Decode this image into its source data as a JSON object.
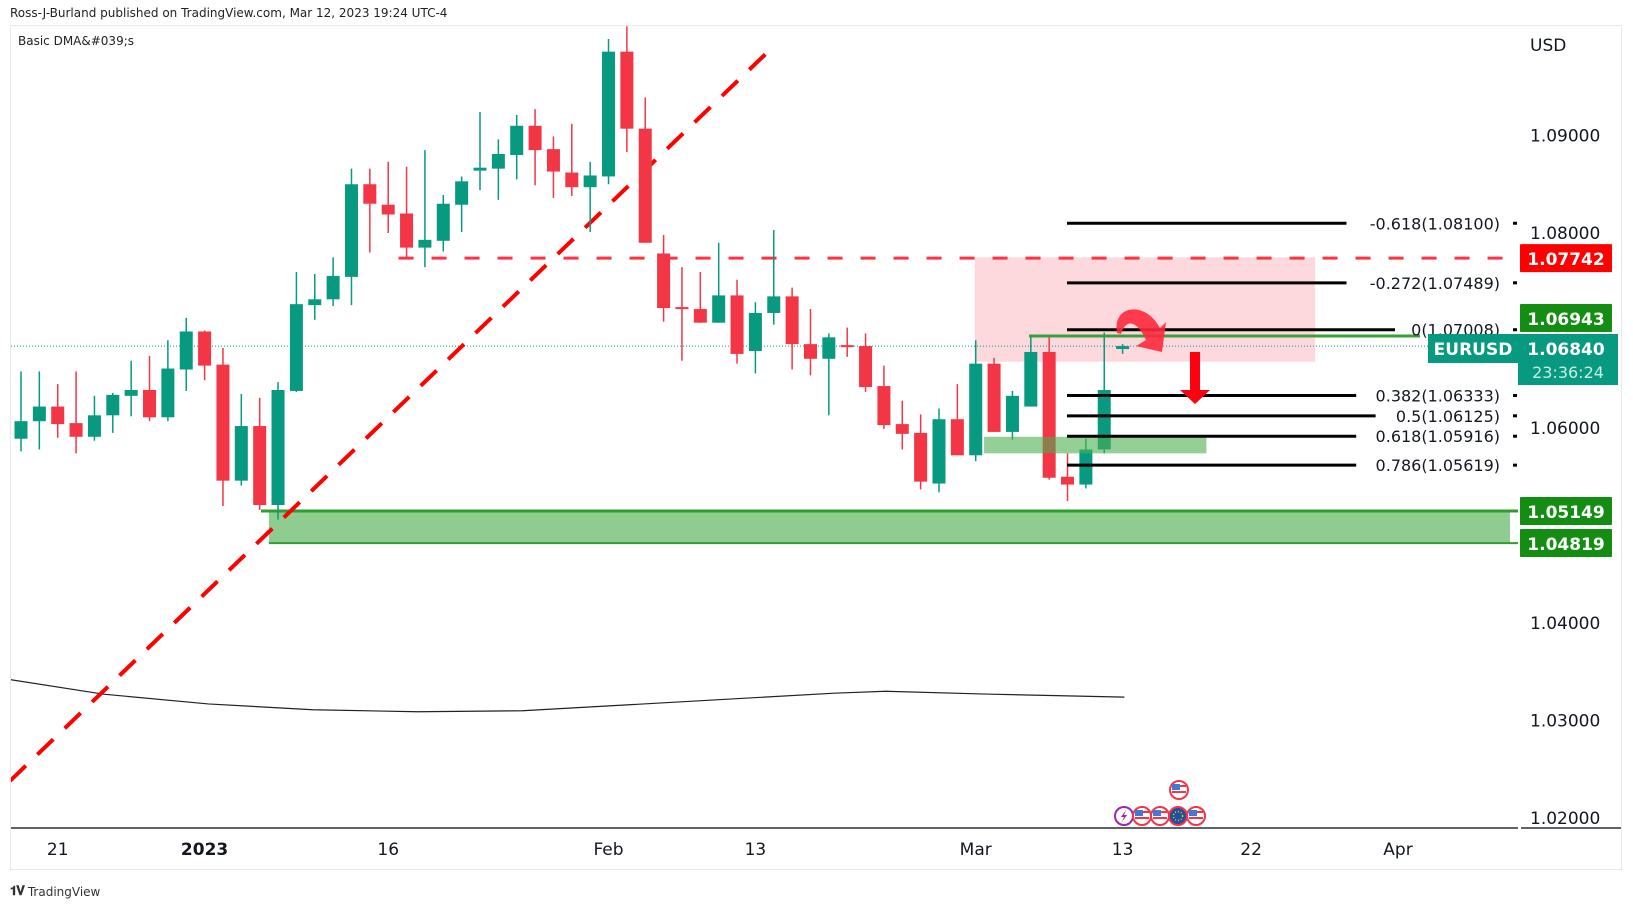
{
  "header": {
    "published": "Ross-J-Burland published on TradingView.com, Mar 12, 2023 19:24 UTC-4",
    "indicator": "Basic DMA&#039;s",
    "currency": "USD",
    "brand": "TradingView",
    "brand_logo": "TV"
  },
  "colors": {
    "up": "#089981",
    "down": "#f23645",
    "fib": "#000000",
    "red_level": "#ff0000",
    "green_level": "#138d12",
    "zone_green": "#8fcc8f",
    "zone_pink": "#fdd9dd",
    "ma": "#222222"
  },
  "chart_data": {
    "type": "candlestick",
    "symbol": "EURUSD",
    "current_price": "1.06840",
    "countdown": "23:36:24",
    "ylim": [
      1.0165,
      1.1015
    ],
    "y_ticks": [
      "1.09000",
      "1.08000",
      "1.06000",
      "1.04000",
      "1.03000",
      "1.02000"
    ],
    "y_tick_values": [
      1.09,
      1.08,
      1.06,
      1.04,
      1.03,
      1.02
    ],
    "x_ticks": [
      {
        "label": "21",
        "bar": 2
      },
      {
        "label": "2023",
        "bar": 10,
        "bold": true
      },
      {
        "label": "16",
        "bar": 20
      },
      {
        "label": "Feb",
        "bar": 32
      },
      {
        "label": "13",
        "bar": 40
      },
      {
        "label": "Mar",
        "bar": 52
      },
      {
        "label": "13",
        "bar": 60
      },
      {
        "label": "22",
        "bar": 67
      },
      {
        "label": "Apr",
        "bar": 75
      }
    ],
    "candles_ohlc": [
      [
        1.0589,
        1.0658,
        1.0576,
        1.0607
      ],
      [
        1.0607,
        1.0658,
        1.0578,
        1.0622
      ],
      [
        1.0622,
        1.0645,
        1.059,
        1.0604
      ],
      [
        1.0605,
        1.0658,
        1.0574,
        1.0591
      ],
      [
        1.0591,
        1.0633,
        1.0587,
        1.0613
      ],
      [
        1.0613,
        1.0636,
        1.0595,
        1.0634
      ],
      [
        1.0633,
        1.0669,
        1.0612,
        1.0639
      ],
      [
        1.0639,
        1.0674,
        1.0607,
        1.0611
      ],
      [
        1.0611,
        1.069,
        1.0607,
        1.0661
      ],
      [
        1.066,
        1.0713,
        1.0638,
        1.0699
      ],
      [
        1.0699,
        1.07,
        1.0649,
        1.0664
      ],
      [
        1.0665,
        1.0682,
        1.052,
        1.0546
      ],
      [
        1.0546,
        1.0635,
        1.0541,
        1.0602
      ],
      [
        1.0602,
        1.0631,
        1.0516,
        1.0521
      ],
      [
        1.0521,
        1.0647,
        1.0506,
        1.0639
      ],
      [
        1.0638,
        1.076,
        1.0637,
        1.0727
      ],
      [
        1.0726,
        1.0758,
        1.0711,
        1.0732
      ],
      [
        1.0732,
        1.0775,
        1.0725,
        1.0756
      ],
      [
        1.0755,
        1.0866,
        1.0726,
        1.085
      ],
      [
        1.085,
        1.0866,
        1.078,
        1.083
      ],
      [
        1.0829,
        1.0873,
        1.08,
        1.0819
      ],
      [
        1.082,
        1.0868,
        1.0773,
        1.0785
      ],
      [
        1.0785,
        1.0885,
        1.0765,
        1.0793
      ],
      [
        1.0792,
        1.0839,
        1.0781,
        1.083
      ],
      [
        1.0829,
        1.0858,
        1.0801,
        1.0853
      ],
      [
        1.0864,
        1.0924,
        1.0844,
        1.0867
      ],
      [
        1.0866,
        1.0896,
        1.0834,
        1.0881
      ],
      [
        1.088,
        1.0921,
        1.0855,
        1.091
      ],
      [
        1.091,
        1.0927,
        1.0849,
        1.0885
      ],
      [
        1.0886,
        1.0899,
        1.0836,
        1.0863
      ],
      [
        1.0862,
        1.0912,
        1.0838,
        1.0847
      ],
      [
        1.0847,
        1.0873,
        1.0801,
        1.0859
      ],
      [
        1.0858,
        1.0999,
        1.085,
        1.0986
      ],
      [
        1.0986,
        1.1012,
        1.0883,
        1.0907
      ],
      [
        1.0907,
        1.0939,
        1.079,
        1.079
      ],
      [
        1.0779,
        1.0798,
        1.0709,
        1.0723
      ],
      [
        1.0724,
        1.0765,
        1.0669,
        1.0722
      ],
      [
        1.0722,
        1.076,
        1.0708,
        1.0708
      ],
      [
        1.0708,
        1.079,
        1.0708,
        1.0736
      ],
      [
        1.0736,
        1.0752,
        1.0666,
        1.0676
      ],
      [
        1.0679,
        1.0729,
        1.0656,
        1.0718
      ],
      [
        1.0718,
        1.0803,
        1.0706,
        1.0735
      ],
      [
        1.0735,
        1.0744,
        1.066,
        1.0686
      ],
      [
        1.0686,
        1.0722,
        1.0654,
        1.0671
      ],
      [
        1.0671,
        1.0697,
        1.0613,
        1.0693
      ],
      [
        1.0685,
        1.0703,
        1.0673,
        1.0683
      ],
      [
        1.0684,
        1.0697,
        1.0637,
        1.0642
      ],
      [
        1.0643,
        1.0664,
        1.0599,
        1.0603
      ],
      [
        1.0604,
        1.0628,
        1.0578,
        1.0594
      ],
      [
        1.0595,
        1.0614,
        1.0537,
        1.0545
      ],
      [
        1.0543,
        1.062,
        1.0534,
        1.0609
      ],
      [
        1.0609,
        1.0645,
        1.0572,
        1.0572
      ],
      [
        1.0572,
        1.069,
        1.0566,
        1.0666
      ],
      [
        1.0666,
        1.0672,
        1.0596,
        1.0596
      ],
      [
        1.0596,
        1.0638,
        1.0588,
        1.0633
      ],
      [
        1.0622,
        1.0694,
        1.0622,
        1.0678
      ],
      [
        1.0678,
        1.0694,
        1.0547,
        1.0549
      ],
      [
        1.055,
        1.0574,
        1.0525,
        1.0542
      ],
      [
        1.0542,
        1.0589,
        1.0538,
        1.0578
      ],
      [
        1.0578,
        1.0698,
        1.0574,
        1.0639
      ],
      [
        1.0681,
        1.0686,
        1.0676,
        1.0684
      ]
    ],
    "moving_average": [
      [
        -0.6,
        1.0342
      ],
      [
        4.5,
        1.0327
      ],
      [
        10.2,
        1.0317
      ],
      [
        15.9,
        1.0311
      ],
      [
        21.6,
        1.0309
      ],
      [
        27.3,
        1.031
      ],
      [
        33,
        1.0316
      ],
      [
        38.6,
        1.0322
      ],
      [
        44.3,
        1.0328
      ],
      [
        47.1,
        1.033
      ],
      [
        52.8,
        1.0327
      ],
      [
        60.1,
        1.0324
      ]
    ],
    "fib_levels": [
      {
        "label": "-0.618(1.08100)",
        "price": 1.081
      },
      {
        "label": "-0.272(1.07489)",
        "price": 1.07489
      },
      {
        "label": "0(1.07008)",
        "price": 1.07008
      },
      {
        "label": "0.382(1.06333)",
        "price": 1.06333
      },
      {
        "label": "0.5(1.06125)",
        "price": 1.06125
      },
      {
        "label": "0.618(1.05916)",
        "price": 1.05916
      },
      {
        "label": "0.786(1.05619)",
        "price": 1.05619
      }
    ],
    "price_labels": [
      {
        "text": "1.07742",
        "price": 1.07742,
        "color": "#ff0000"
      },
      {
        "text": "1.06943",
        "price": 1.06943,
        "color": "#138d12"
      },
      {
        "text": "1.05149",
        "price": 1.05149,
        "color": "#138d12"
      },
      {
        "text": "1.04819",
        "price": 1.04819,
        "color": "#138d12"
      }
    ],
    "trendline": {
      "from": [
        -0.6,
        1.0238
      ],
      "to": [
        40.8,
        1.0988
      ]
    },
    "resistance_dashed": {
      "price": 1.07742,
      "from_bar": 21
    },
    "support_zone": {
      "top": 1.05149,
      "bottom": 1.04819,
      "from_bar": 13.5
    },
    "pink_zone": {
      "top": 1.0775,
      "bottom": 1.0668,
      "from_bar": 52,
      "to_bar": 70
    },
    "small_green_zone": {
      "top": 1.0591,
      "bottom": 1.0574,
      "from_bar": 53,
      "to_bar": 65
    },
    "events": [
      "lightning",
      "us",
      "us",
      "eu",
      "us",
      "us"
    ]
  }
}
